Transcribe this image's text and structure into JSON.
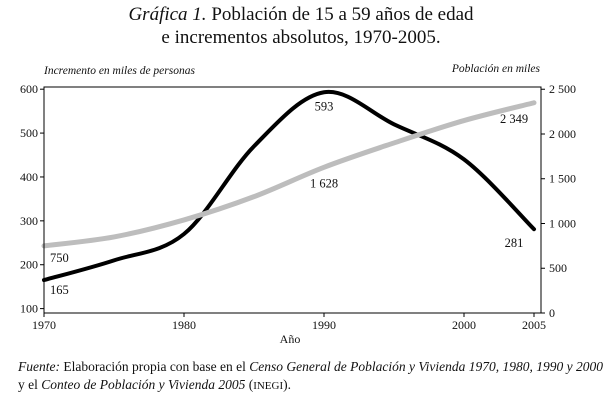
{
  "chart_data": {
    "type": "line",
    "title_label": "Gráfica 1.",
    "title": [
      "Población de 15 a 59 años de edad",
      "e incrementos absolutos, 1970-2005."
    ],
    "ylabel": "Incremento en miles de personas",
    "y2label": "Población en miles",
    "xlabel": "Año",
    "x": [
      1970,
      1975,
      1980,
      1985,
      1990,
      1995,
      2000,
      2005
    ],
    "xlim": [
      1970,
      2005.5
    ],
    "xticks": [
      1970,
      1980,
      1990,
      2000,
      2005
    ],
    "ylim": [
      90,
      605
    ],
    "yticks": [
      100,
      200,
      300,
      400,
      500,
      600
    ],
    "y2lim": [
      0,
      2525
    ],
    "y2ticks": [
      0,
      500,
      {
        "value": 1000,
        "label": "1 000"
      },
      {
        "value": 1500,
        "label": "1 500"
      },
      {
        "value": 2000,
        "label": "2 000"
      },
      {
        "value": 2500,
        "label": "2 500"
      }
    ],
    "series": [
      {
        "name": "Incremento",
        "color": "#000000",
        "axis": "y",
        "width": 4,
        "values": [
          165,
          210,
          270,
          470,
          593,
          520,
          440,
          281
        ],
        "value_labels": [
          "165",
          null,
          null,
          null,
          "593",
          null,
          null,
          "281"
        ]
      },
      {
        "name": "Población",
        "color": "#bdbdbd",
        "axis": "y2",
        "width": 5,
        "values": [
          750,
          850,
          1040,
          1300,
          1628,
          1900,
          2150,
          2349
        ],
        "value_labels": [
          "750",
          null,
          null,
          null,
          "1 628",
          null,
          null,
          "2 349"
        ]
      }
    ]
  },
  "note": [
    "Fuente:",
    " Elaboración propia con base en el ",
    "Censo General de Población y Vivienda 1970, 1980, 1990 y 2000",
    " y el ",
    "Conteo de Población y Vivienda 2005",
    " (",
    "INEGI",
    ")."
  ]
}
